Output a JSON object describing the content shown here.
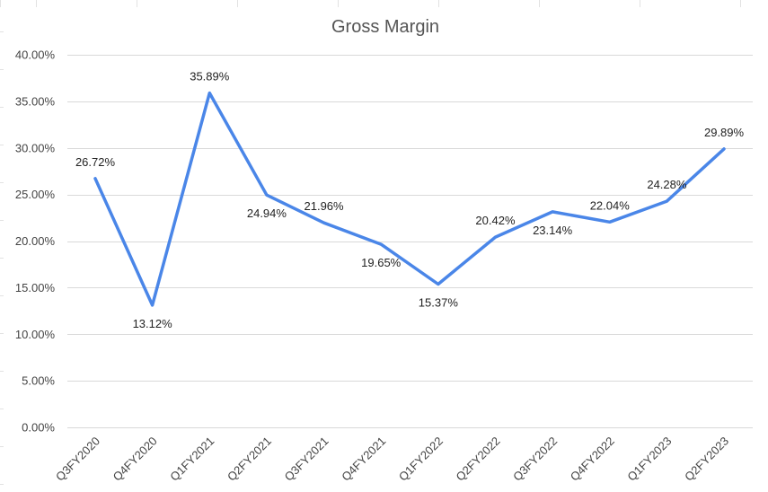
{
  "colors": {
    "line": "#4a86e8",
    "gridline": "#d9d9d9",
    "sheet_gridline": "#e2e2e2",
    "axis_text": "#444444"
  },
  "chart_data": {
    "type": "line",
    "title": "Gross Margin",
    "xlabel": "",
    "ylabel": "",
    "categories": [
      "Q3FY2020",
      "Q4FY2020",
      "Q1FY2021",
      "Q2FY2021",
      "Q3FY2021",
      "Q4FY2021",
      "Q1FY2022",
      "Q2FY2022",
      "Q3FY2022",
      "Q4FY2022",
      "Q1FY2023",
      "Q2FY2023"
    ],
    "values": [
      26.72,
      13.12,
      35.89,
      24.94,
      21.96,
      19.65,
      15.37,
      20.42,
      23.14,
      22.04,
      24.28,
      29.89
    ],
    "data_labels": [
      "26.72%",
      "13.12%",
      "35.89%",
      "24.94%",
      "21.96%",
      "19.65%",
      "15.37%",
      "20.42%",
      "23.14%",
      "22.04%",
      "24.28%",
      "29.89%"
    ],
    "label_positions": [
      "above",
      "below",
      "above",
      "below",
      "above",
      "below",
      "below",
      "above",
      "below",
      "above",
      "above",
      "above"
    ],
    "ylim": [
      0,
      40
    ],
    "yticks": [
      0,
      5,
      10,
      15,
      20,
      25,
      30,
      35,
      40
    ],
    "ytick_labels": [
      "0.00%",
      "5.00%",
      "10.00%",
      "15.00%",
      "20.00%",
      "25.00%",
      "30.00%",
      "35.00%",
      "40.00%"
    ],
    "grid": true,
    "legend": "none"
  }
}
